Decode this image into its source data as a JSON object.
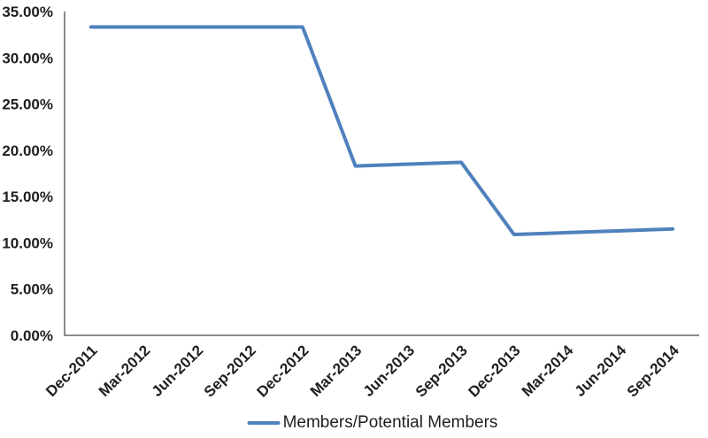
{
  "chart_data": {
    "type": "line",
    "categories": [
      "Dec-2011",
      "Mar-2012",
      "Jun-2012",
      "Sep-2012",
      "Dec-2012",
      "Mar-2013",
      "Jun-2013",
      "Sep-2013",
      "Dec-2013",
      "Mar-2014",
      "Jun-2014",
      "Sep-2014"
    ],
    "series": [
      {
        "name": "Members/Potential Members",
        "values": [
          33.33,
          33.33,
          33.33,
          33.33,
          33.33,
          18.3,
          18.5,
          18.7,
          10.9,
          11.1,
          11.3,
          11.5
        ]
      }
    ],
    "ylim": [
      0,
      35
    ],
    "y_ticks": [
      "0.00%",
      "5.00%",
      "10.00%",
      "15.00%",
      "20.00%",
      "25.00%",
      "30.00%",
      "35.00%"
    ],
    "legend_position": "bottom",
    "grid": false,
    "line_color": "#4F81BD",
    "axis_color": "#8C8C8C",
    "text_color": "#1f1f1f"
  }
}
